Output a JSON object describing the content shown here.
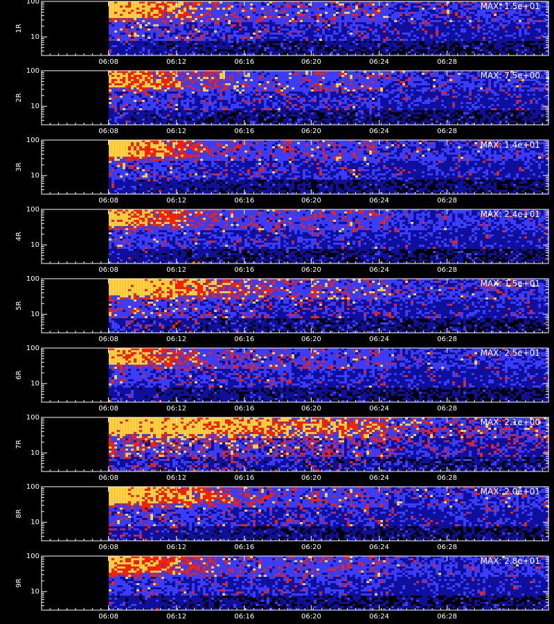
{
  "colors": {
    "background": "#000000",
    "axis": "#ffffff",
    "low": "#1010a0",
    "mid": "#3d3dff",
    "high": "#ff2000",
    "peak": "#ffd040"
  },
  "x_axis_title": "",
  "chart_data": {
    "type": "heatmap",
    "xlim": [
      6.067,
      6.567
    ],
    "x_ticks": [
      "06:08",
      "06:12",
      "06:16",
      "06:20",
      "06:24",
      "06:28"
    ],
    "x_tick_values": [
      6.133,
      6.2,
      6.267,
      6.333,
      6.4,
      6.467
    ],
    "ylim": [
      3,
      100
    ],
    "y_scale": "log",
    "y_ticks": [
      "100",
      "10"
    ],
    "y_tick_values": [
      100,
      10
    ],
    "data_start_time": "06:08",
    "data_start_value": 6.1333,
    "panels": [
      {
        "label": "1R",
        "max_label": "MAX: 1.5e+01",
        "burst_strength": 0.9,
        "burst_extent": 0.28,
        "speckle": 0.15
      },
      {
        "label": "2R",
        "max_label": "MAX: 7.5e+00",
        "burst_strength": 0.75,
        "burst_extent": 0.3,
        "speckle": 0.15
      },
      {
        "label": "3R",
        "max_label": "MAX: 1.4e+01",
        "burst_strength": 1.0,
        "burst_extent": 0.25,
        "speckle": 0.12
      },
      {
        "label": "4R",
        "max_label": "MAX: 2.4e+01",
        "burst_strength": 0.8,
        "burst_extent": 0.28,
        "speckle": 0.1
      },
      {
        "label": "5R",
        "max_label": "MAX: 1.5e+01",
        "burst_strength": 1.0,
        "burst_extent": 0.4,
        "speckle": 0.22
      },
      {
        "label": "6R",
        "max_label": "MAX: 2.5e+01",
        "burst_strength": 0.8,
        "burst_extent": 0.25,
        "speckle": 0.1
      },
      {
        "label": "7R",
        "max_label": "MAX: 2.1e+00",
        "burst_strength": 0.9,
        "burst_extent": 0.8,
        "speckle": 0.45
      },
      {
        "label": "8R",
        "max_label": "MAX: 2.0e+01",
        "burst_strength": 1.0,
        "burst_extent": 0.35,
        "speckle": 0.15
      },
      {
        "label": "9R",
        "max_label": "MAX: 2.8e+01",
        "burst_strength": 0.8,
        "burst_extent": 0.28,
        "speckle": 0.1
      }
    ]
  }
}
